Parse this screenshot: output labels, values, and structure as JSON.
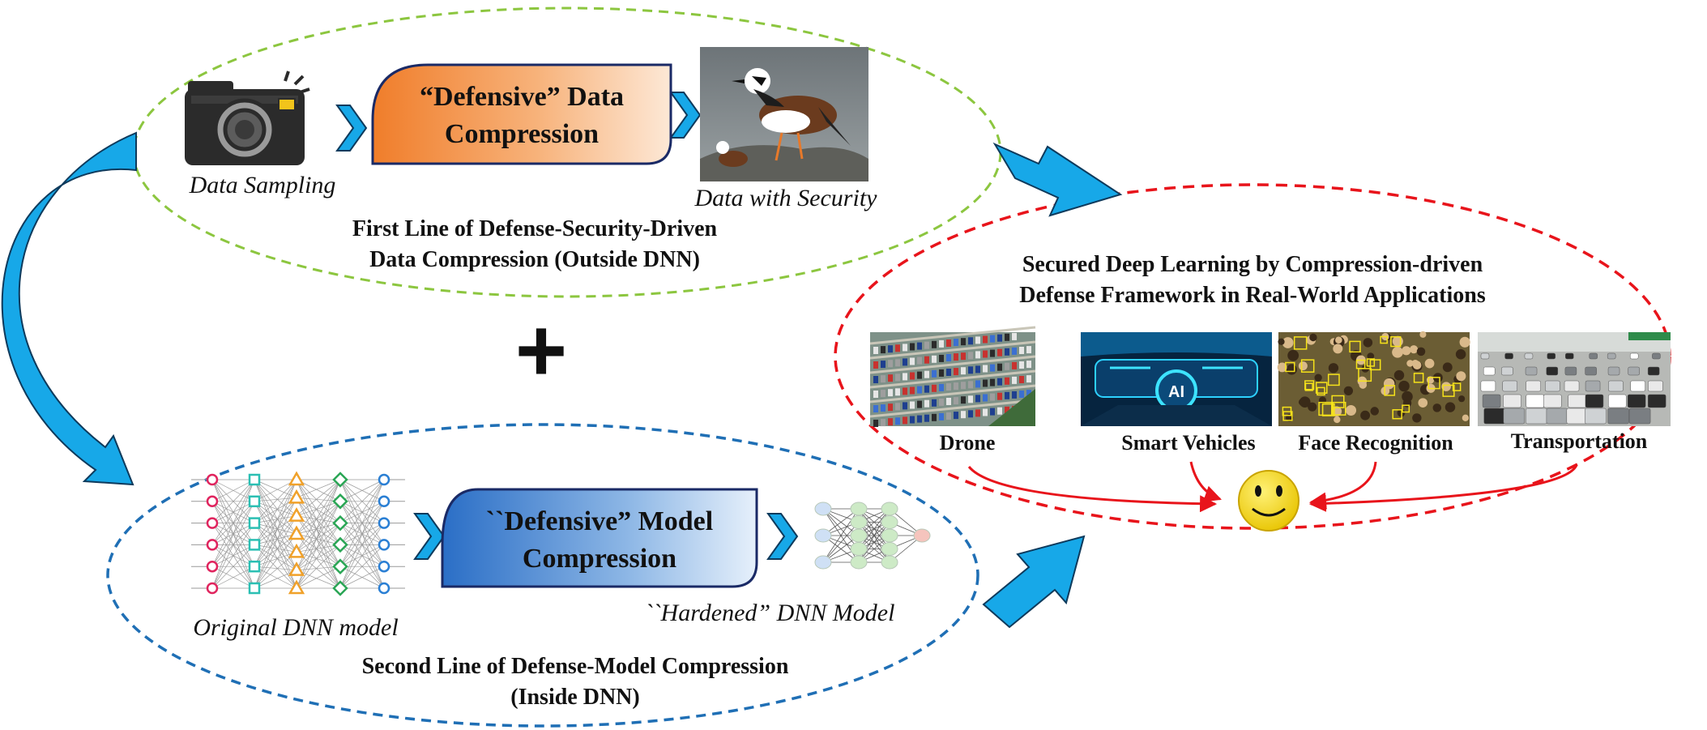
{
  "top_section": {
    "sampling_label": "Data Sampling",
    "compression_line1": "“Defensive” Data",
    "compression_line2": "Compression",
    "secured_label": "Data with Security",
    "caption_line1": "First Line of Defense-Security-Driven",
    "caption_line2": "Data Compression (Outside DNN)"
  },
  "plus_sign": "+",
  "bottom_section": {
    "original_label": "Original DNN model",
    "compression_line1": "``Defensive” Model",
    "compression_line2": "Compression",
    "hardened_label": "``Hardened” DNN Model",
    "caption_line1": "Second Line of Defense-Model Compression",
    "caption_line2": "(Inside DNN)"
  },
  "applications": {
    "title_line1": "Secured Deep Learning by Compression-driven",
    "title_line2": "Defense Framework in Real-World Applications",
    "items": [
      "Drone",
      "Smart Vehicles",
      "Face Recognition",
      "Transportation"
    ],
    "vehicle_screen_text": "AI"
  },
  "colors": {
    "top_ellipse": "#8cc63f",
    "bottom_ellipse": "#1f6fb5",
    "app_ellipse": "#e8141b",
    "arrow_blue": "#17a8e8",
    "data_box": "#f28a3c",
    "model_box": "#2f6fc4",
    "smiley": "#f2d400",
    "app_arrows": "#e8141b"
  }
}
